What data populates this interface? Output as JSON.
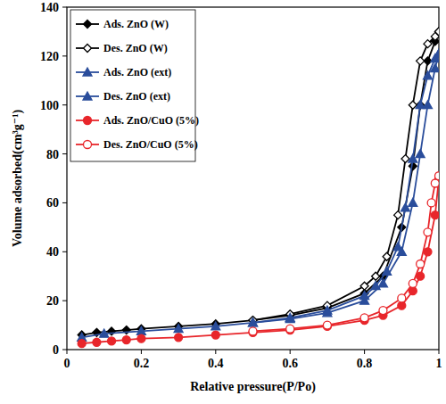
{
  "chart_data": {
    "type": "line",
    "x_label": "Relative pressure(P/Po)",
    "y_label": "Volume adsorbed(cm³g⁻¹)",
    "xlim": [
      0,
      1
    ],
    "xticks": [
      0,
      0.2,
      0.4,
      0.6,
      0.8,
      1
    ],
    "ylim": [
      0,
      140
    ],
    "yticks": [
      0,
      20,
      40,
      60,
      80,
      100,
      120,
      140
    ],
    "grid": false,
    "legend": "upper-left",
    "series": [
      {
        "name": "Ads. ZnO (W)",
        "color": "#000000",
        "marker": "diamond",
        "x": [
          0.04,
          0.08,
          0.12,
          0.16,
          0.2,
          0.3,
          0.4,
          0.5,
          0.6,
          0.7,
          0.8,
          0.85,
          0.9,
          0.93,
          0.95,
          0.97,
          0.99,
          1.0
        ],
        "values": [
          6,
          7,
          7.5,
          8,
          8.5,
          9.5,
          10.5,
          12,
          14,
          17,
          23,
          30,
          50,
          75,
          100,
          118,
          126,
          130
        ]
      },
      {
        "name": "Des. ZnO (W)",
        "color": "#000000",
        "marker": "diamond-open",
        "x": [
          1.0,
          0.99,
          0.97,
          0.95,
          0.93,
          0.91,
          0.89,
          0.86,
          0.83,
          0.8,
          0.7,
          0.6,
          0.5
        ],
        "values": [
          130,
          128,
          125,
          118,
          100,
          78,
          55,
          38,
          30,
          26,
          18,
          14.5,
          12
        ]
      },
      {
        "name": "Ads. ZnO (ext)",
        "color": "#2a4d9b",
        "marker": "triangle",
        "x": [
          0.04,
          0.1,
          0.2,
          0.3,
          0.4,
          0.5,
          0.6,
          0.7,
          0.8,
          0.85,
          0.9,
          0.93,
          0.95,
          0.97,
          0.99,
          1.0
        ],
        "values": [
          5,
          6.5,
          7.5,
          8.5,
          9.5,
          11,
          12.5,
          15,
          20,
          27,
          40,
          60,
          80,
          100,
          115,
          121
        ]
      },
      {
        "name": "Des. ZnO (ext)",
        "color": "#2a4d9b",
        "marker": "triangle",
        "x": [
          1.0,
          0.99,
          0.97,
          0.95,
          0.93,
          0.91,
          0.89,
          0.86,
          0.83,
          0.8,
          0.7,
          0.6,
          0.5
        ],
        "values": [
          121,
          119,
          112,
          100,
          78,
          58,
          42,
          32,
          26,
          22,
          16,
          13,
          11
        ]
      },
      {
        "name": "Ads. ZnO/CuO (5%)",
        "color": "#e8262b",
        "marker": "circle",
        "x": [
          0.04,
          0.08,
          0.12,
          0.16,
          0.2,
          0.3,
          0.4,
          0.5,
          0.6,
          0.7,
          0.8,
          0.85,
          0.9,
          0.93,
          0.95,
          0.97,
          0.99,
          1.0
        ],
        "values": [
          2.5,
          3,
          3.5,
          4,
          4.5,
          5,
          6,
          7,
          8,
          9.5,
          12,
          14,
          18,
          24,
          30,
          40,
          55,
          70
        ]
      },
      {
        "name": "Des. ZnO/CuO (5%)",
        "color": "#e8262b",
        "marker": "circle-open",
        "x": [
          1.0,
          0.99,
          0.98,
          0.97,
          0.95,
          0.93,
          0.9,
          0.85,
          0.8,
          0.7,
          0.6,
          0.5
        ],
        "values": [
          71,
          68,
          60,
          48,
          35,
          27,
          21,
          16,
          13,
          10,
          8.5,
          7.5
        ]
      }
    ]
  }
}
